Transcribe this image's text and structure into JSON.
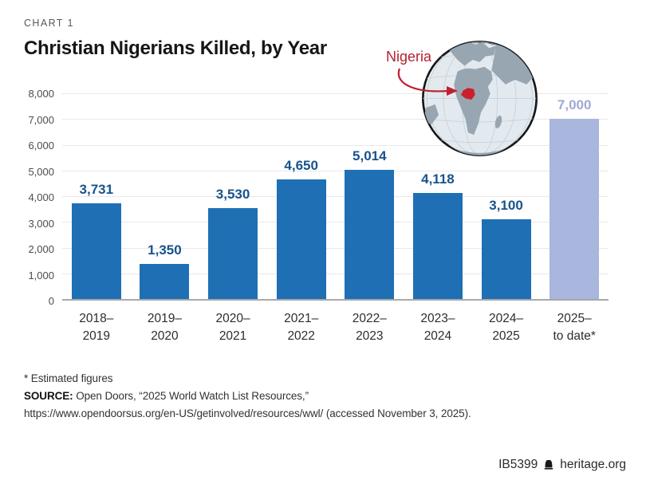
{
  "header": {
    "kicker": "CHART 1",
    "title": "Christian Nigerians Killed, by Year"
  },
  "map_inset": {
    "label": "Nigeria",
    "highlight_color": "#cb1f2d",
    "land_color": "#98a6b2",
    "ocean_color": "#e3eaef"
  },
  "chart_data": {
    "type": "bar",
    "title": "Christian Nigerians Killed, by Year",
    "categories": [
      "2018–\n2019",
      "2019–\n2020",
      "2020–\n2021",
      "2021–\n2022",
      "2022–\n2023",
      "2023–\n2024",
      "2024–\n2025",
      "2025–\nto date*"
    ],
    "values": [
      3731,
      1350,
      3530,
      4650,
      5014,
      4118,
      3100,
      7000
    ],
    "value_labels": [
      "3,731",
      "1,350",
      "3,530",
      "4,650",
      "5,014",
      "4,118",
      "3,100",
      "7,000"
    ],
    "bar_roles": [
      "actual",
      "actual",
      "actual",
      "actual",
      "actual",
      "actual",
      "actual",
      "estimate"
    ],
    "xlabel": "",
    "ylabel": "",
    "ylim": [
      0,
      8000
    ],
    "ytick_interval": 1000,
    "yticks": [
      "8,000",
      "7,000",
      "6,000",
      "5,000",
      "4,000",
      "3,000",
      "2,000",
      "1,000",
      "0"
    ],
    "grid": true,
    "legend": "none",
    "colors": {
      "bar": "#1f6fb5",
      "bar_estimate": "#a9b6dd",
      "value_label": "#17538c",
      "value_label_estimate": "#9dabd4"
    }
  },
  "footnotes": {
    "estimate_note": "* Estimated figures",
    "source_label": "SOURCE:",
    "source_text": " Open Doors, “2025 World Watch List Resources,”",
    "source_url_line": "https://www.opendoorsus.org/en-US/getinvolved/resources/wwl/ (accessed November 3, 2025)."
  },
  "footer": {
    "doc_id": "IB5399",
    "site": "heritage.org"
  }
}
